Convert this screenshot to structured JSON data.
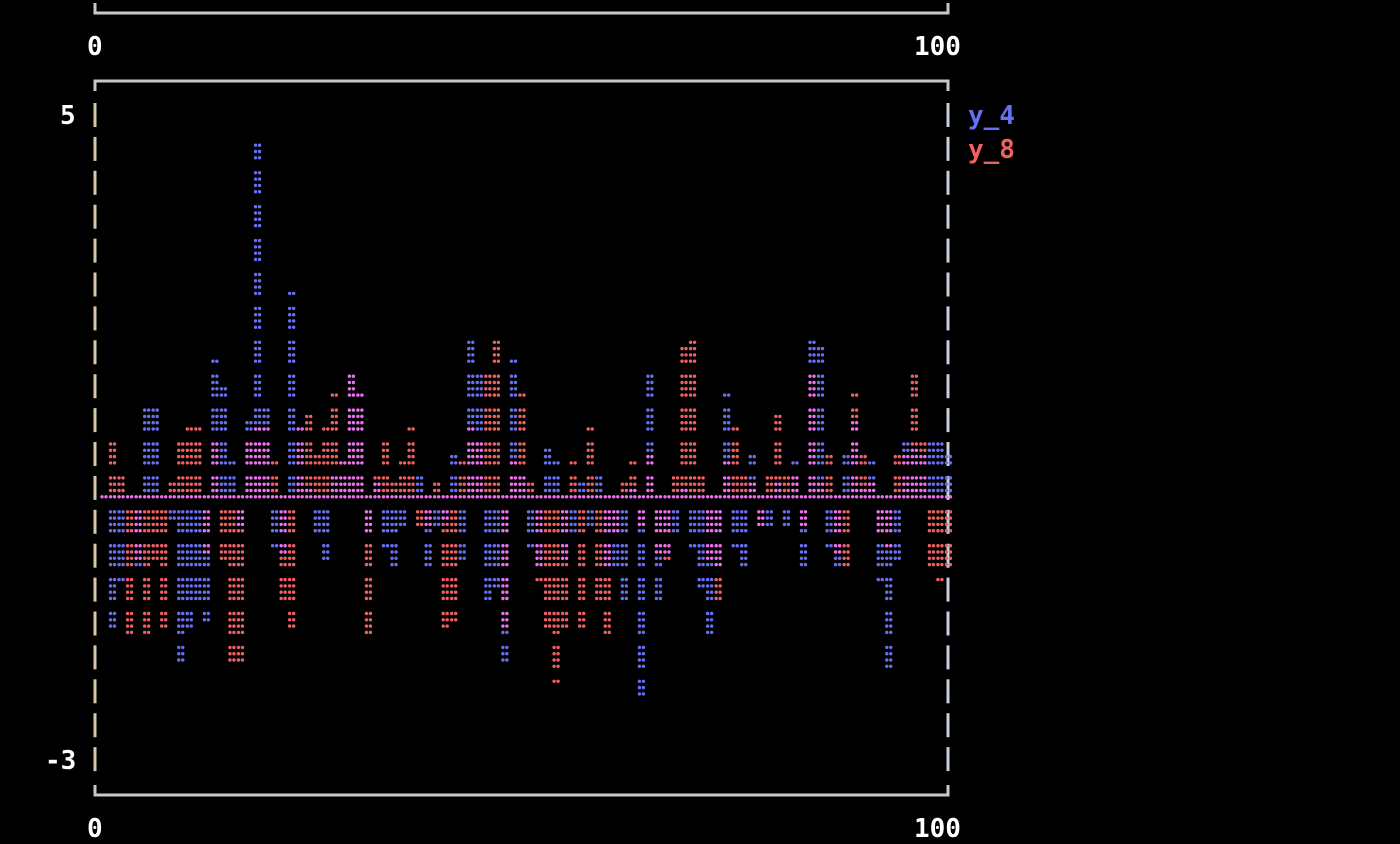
{
  "chart_data": {
    "type": "bar",
    "title": "",
    "xlabel": "",
    "ylabel": "",
    "xlim": [
      0,
      100
    ],
    "ylim": [
      -3,
      5
    ],
    "x_ticks": [
      "0",
      "100"
    ],
    "y_ticks": [
      "5",
      "-3"
    ],
    "grid": false,
    "legend_position": "right",
    "series": [
      {
        "name": "y_4",
        "color": "#6670f0",
        "values": [
          0,
          -1.6,
          -1.0,
          0.1,
          -0.9,
          1.25,
          1.25,
          0.1,
          -0.3,
          -2.0,
          -1.6,
          -1.3,
          -1.5,
          1.7,
          1.4,
          0.5,
          -0.4,
          1.0,
          4.45,
          1.2,
          -0.6,
          -0.7,
          2.55,
          0.9,
          0.2,
          -0.5,
          -0.8,
          0.4,
          0.5,
          1.6,
          1.3,
          -0.5,
          0.3,
          -0.6,
          -0.9,
          -0.4,
          0.1,
          0.4,
          -0.9,
          -0.4,
          -0.3,
          0.6,
          -0.8,
          2.05,
          1.6,
          -1.3,
          -1.1,
          -2.1,
          1.7,
          0.4,
          -0.6,
          -0.9,
          0.7,
          0.5,
          -0.8,
          -0.5,
          0.3,
          -0.4,
          0.4,
          -0.9,
          -0.9,
          -1.3,
          0.2,
          -2.5,
          1.65,
          -1.3,
          -0.7,
          -0.5,
          0.2,
          -0.6,
          -1.1,
          -1.7,
          -0.9,
          1.3,
          -0.6,
          -0.9,
          0.6,
          -0.4,
          -0.4,
          0.3,
          -0.4,
          0.5,
          -0.9,
          2.05,
          1.95,
          -0.6,
          -0.9,
          0.6,
          1.0,
          0.2,
          0.5,
          -1.0,
          -2.2,
          -0.8,
          0.8,
          0.7,
          0.6,
          0.8,
          0.8,
          0.6
        ]
      },
      {
        "name": "y_8",
        "color": "#f06060",
        "values": [
          0,
          0.8,
          0.4,
          -1.7,
          -0.8,
          -1.7,
          -0.8,
          -1.6,
          0.3,
          0.8,
          0.9,
          0.9,
          -0.7,
          0.8,
          -0.8,
          -2.1,
          -2.1,
          0.8,
          0.9,
          0.9,
          0.5,
          -1.3,
          -1.6,
          0.9,
          1.1,
          0.6,
          0.9,
          1.3,
          0.5,
          1.6,
          1.3,
          -1.7,
          0.4,
          0.8,
          0.3,
          0.5,
          0.9,
          -0.4,
          -0.4,
          0.3,
          -1.6,
          -1.5,
          0.5,
          0.9,
          0.8,
          1.65,
          2.0,
          -1.6,
          0.5,
          1.3,
          0.3,
          -1.0,
          -1.6,
          -2.3,
          -1.6,
          0.5,
          -1.6,
          0.9,
          -1.3,
          -1.7,
          -0.5,
          0.3,
          0.5,
          -0.4,
          0.6,
          -0.7,
          -0.8,
          0.4,
          1.9,
          2.1,
          0.4,
          -0.8,
          -1.3,
          0.5,
          0.9,
          0.4,
          0.3,
          -0.4,
          0.4,
          1.14,
          0.4,
          0.4,
          -0.4,
          1.6,
          0.3,
          0.6,
          -0.7,
          -0.9,
          1.3,
          0.6,
          0.3,
          -0.5,
          -0.6,
          0.6,
          0.6,
          1.65,
          0.8,
          -0.9,
          -1.0,
          -0.9
        ]
      }
    ],
    "overlap_color": "#f070f0",
    "axis_color": "#c8c8c8"
  }
}
